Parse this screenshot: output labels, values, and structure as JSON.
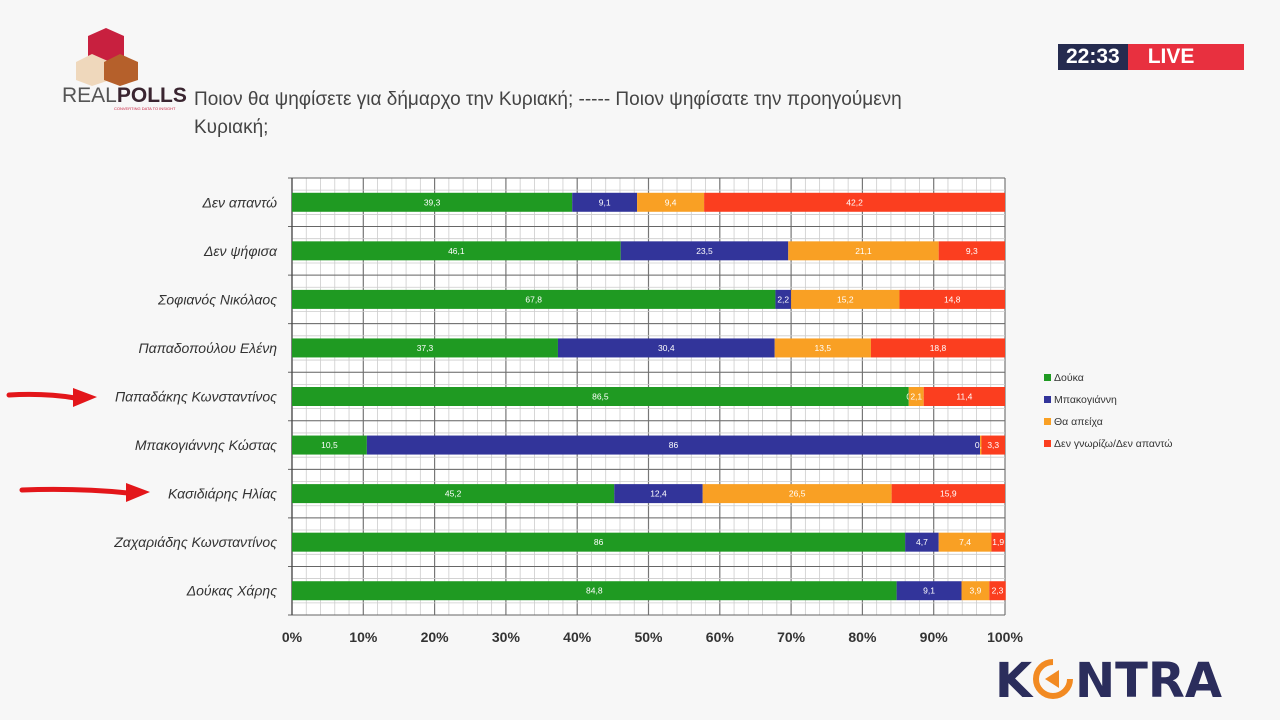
{
  "header": {
    "logo_text": "REALPOLLS",
    "logo_tagline": "CONVERTING DATA TO INSIGHT",
    "title": "Ποιον θα ψηφίσετε για δήμαρχο την Κυριακή;  -----  Ποιον ψηφίσατε την προηγούμενη Κυριακή;"
  },
  "broadcast": {
    "time": "22:33",
    "live_label": "LIVE",
    "channel_logo": "KONTRA"
  },
  "chart_data": {
    "type": "bar",
    "orientation": "horizontal",
    "stacked": "100%",
    "categories": [
      "Δεν απαντώ",
      "Δεν ψήφισα",
      "Σοφιανός Νικόλαος",
      "Παπαδοπούλου Ελένη",
      "Παπαδάκης Κωνσταντίνος",
      "Μπακογιάννης Κώστας",
      "Κασιδιάρης Ηλίας",
      "Ζαχαριάδης Κωνσταντίνος",
      "Δούκας Χάρης"
    ],
    "series": [
      {
        "name": "Δούκα",
        "color": "#1f9a22",
        "values": [
          39.3,
          46.1,
          67.8,
          37.3,
          86.5,
          10.5,
          45.2,
          86,
          84.8
        ],
        "labels": [
          "39,3",
          "46,1",
          "67,8",
          "37,3",
          "86,5",
          "10,5",
          "45,2",
          "86",
          "84,8"
        ]
      },
      {
        "name": "Μπακογιάννη",
        "color": "#32349a",
        "values": [
          9.1,
          23.5,
          2.2,
          30.4,
          0,
          86,
          12.4,
          4.7,
          9.1
        ],
        "labels": [
          "9,1",
          "23,5",
          "2,2",
          "30,4",
          "0",
          "86",
          "12,4",
          "4,7",
          "9,1"
        ]
      },
      {
        "name": "Θα απείχα",
        "color": "#f9a024",
        "values": [
          9.4,
          21.1,
          15.2,
          13.5,
          2.1,
          0.2,
          26.5,
          7.4,
          3.9
        ],
        "labels": [
          "9,4",
          "21,1",
          "15,2",
          "13,5",
          "2,1",
          "0,2",
          "26,5",
          "7,4",
          "3,9"
        ]
      },
      {
        "name": "Δεν γνωρίζω/Δεν απαντώ",
        "color": "#fb3e1f",
        "values": [
          42.2,
          9.3,
          14.8,
          18.8,
          11.4,
          3.3,
          15.9,
          1.9,
          2.3
        ],
        "labels": [
          "42,2",
          "9,3",
          "14,8",
          "18,8",
          "11,4",
          "3,3",
          "15,9",
          "1,9",
          "2,3"
        ]
      }
    ],
    "xlim": [
      0,
      100
    ],
    "xticks": [
      "0%",
      "10%",
      "20%",
      "30%",
      "40%",
      "50%",
      "60%",
      "70%",
      "80%",
      "90%",
      "100%"
    ],
    "grid": true,
    "legend_position": "right",
    "annotations": [
      "red arrow pointing to Παπαδάκης Κωνσταντίνος",
      "red arrow pointing to Κασιδιάρης Ηλίας"
    ]
  }
}
